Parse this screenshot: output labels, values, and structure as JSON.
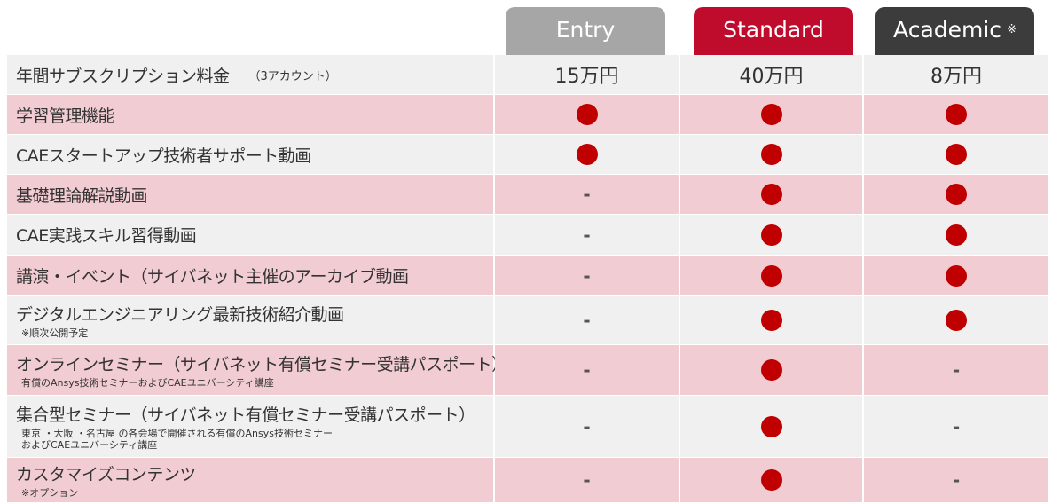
{
  "plans": [
    {
      "name": "Entry",
      "color": "#a6a6a6",
      "price": "15万円"
    },
    {
      "name": "Standard",
      "color": "#c00c2c",
      "price": "40万円"
    },
    {
      "name": "Academic",
      "note": "※",
      "color": "#3c3c3c",
      "price": "8万円"
    }
  ],
  "price_row": {
    "label": "年間サブスクリプション料金",
    "sub": "（3アカウント）"
  },
  "colors": {
    "pink_row": "#f2ccd3",
    "gray_row": "#f0f0f0",
    "dot": "#c00000"
  },
  "dash": "-",
  "features": [
    {
      "label": "学習管理機能",
      "note": "",
      "values": [
        true,
        true,
        true
      ]
    },
    {
      "label": "CAEスタートアップ技術者サポート動画",
      "note": "",
      "values": [
        true,
        true,
        true
      ]
    },
    {
      "label": "基礎理論解説動画",
      "note": "",
      "values": [
        false,
        true,
        true
      ]
    },
    {
      "label": "CAE実践スキル習得動画",
      "note": "",
      "values": [
        false,
        true,
        true
      ]
    },
    {
      "label": "講演・イベント（サイバネット主催のアーカイブ動画",
      "note": "",
      "values": [
        false,
        true,
        true
      ]
    },
    {
      "label": "デジタルエンジニアリング最新技術紹介動画",
      "note": "※順次公開予定",
      "values": [
        false,
        true,
        true
      ]
    },
    {
      "label": "オンラインセミナー（サイバネット有償セミナー受講パスポート）",
      "note": "有償のAnsys技術セミナーおよびCAEユニバーシティ講座",
      "values": [
        false,
        true,
        false
      ]
    },
    {
      "label": "集合型セミナー（サイバネット有償セミナー受講パスポート）",
      "note": "東京 ・大阪 ・名古屋 の各会場で開催される有償のAnsys技術セミナー\nおよびCAEユニバーシティ講座",
      "values": [
        false,
        true,
        false
      ]
    },
    {
      "label": "カスタマイズコンテンツ",
      "note": "※オプション",
      "values": [
        false,
        true,
        false
      ]
    }
  ]
}
